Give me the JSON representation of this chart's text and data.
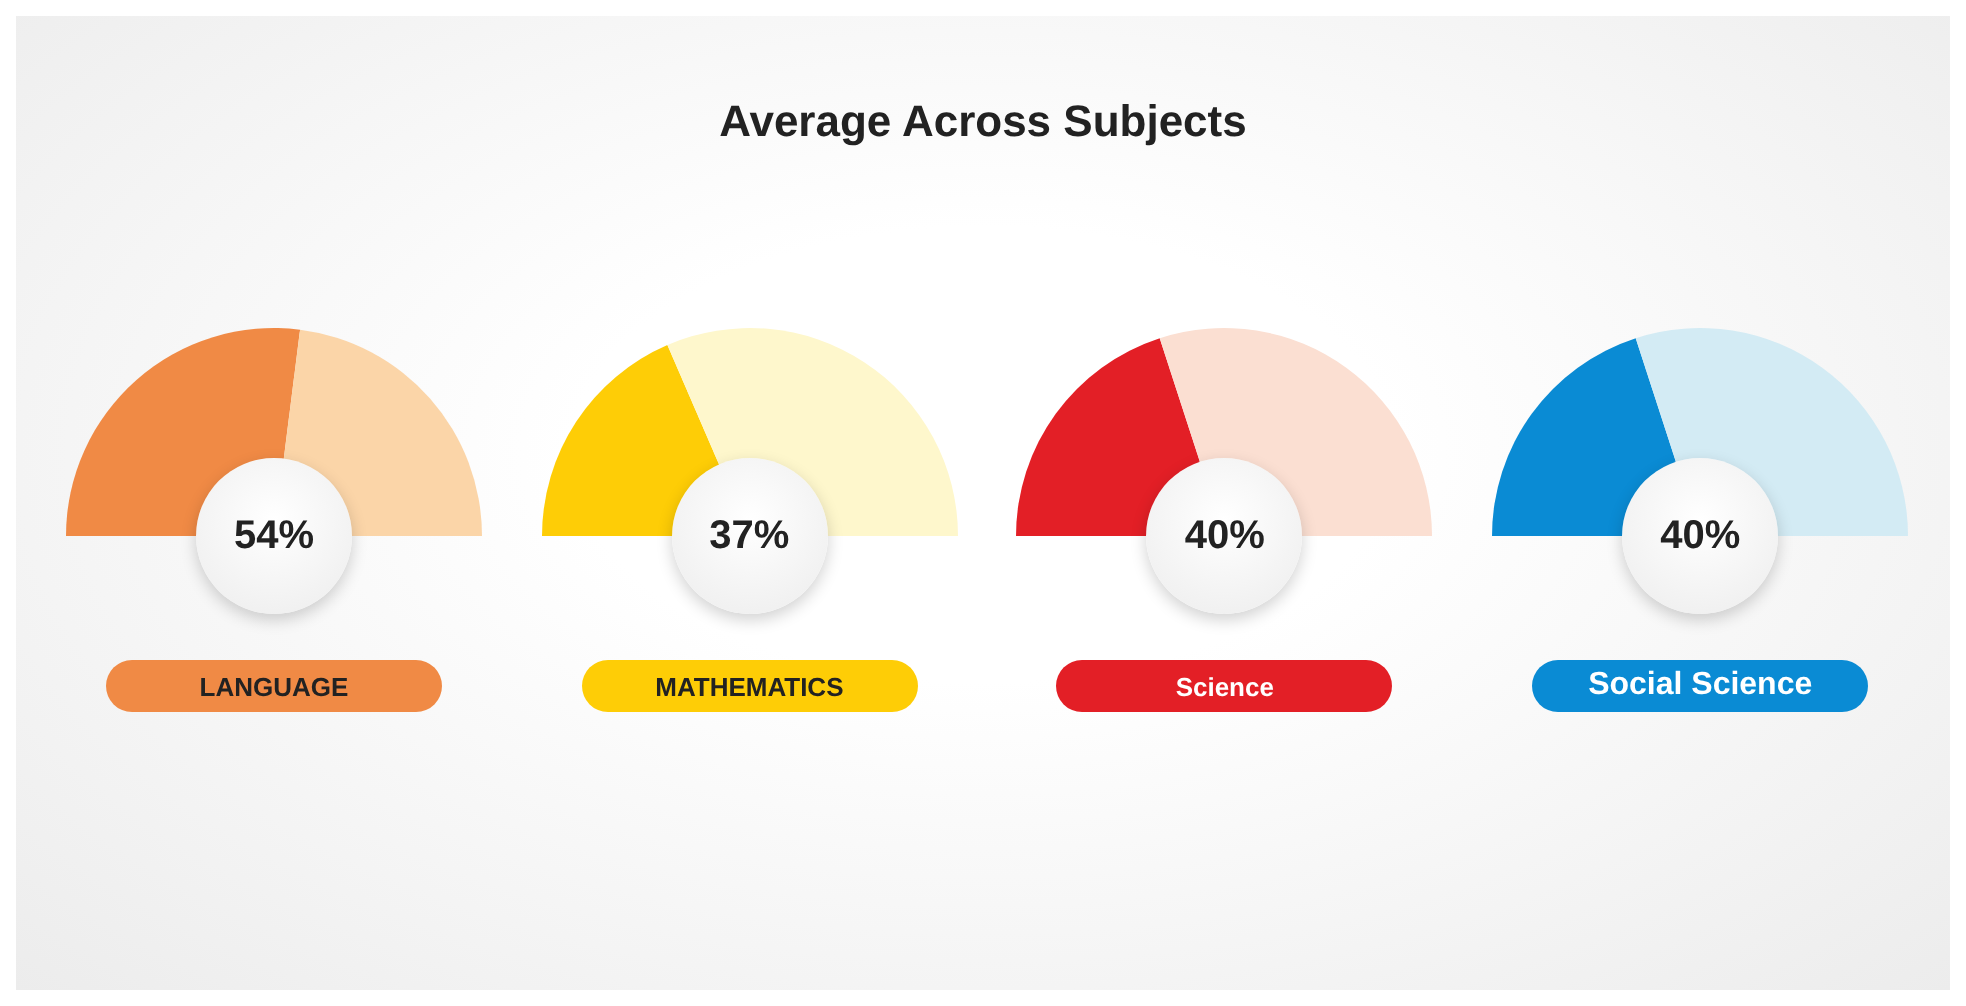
{
  "chart_data": [
    {
      "type": "other",
      "title": "Average Across Subjects"
    },
    {
      "type": "pie",
      "title": "LANGUAGE",
      "categories": [
        null,
        null
      ],
      "values": [
        54,
        46
      ],
      "colors": [
        "#f08a45",
        "#fbd5a8"
      ],
      "annotations": [
        "54%"
      ]
    },
    {
      "type": "pie",
      "title": "MATHEMATICS",
      "categories": [
        null,
        null
      ],
      "values": [
        37,
        63
      ],
      "colors": [
        "#fecd06",
        "#fef7cc"
      ],
      "annotations": [
        "37%"
      ]
    },
    {
      "type": "pie",
      "title": "Science",
      "categories": [
        null,
        null
      ],
      "values": [
        40,
        60
      ],
      "colors": [
        "#e31f26",
        "#fbdfd2"
      ],
      "annotations": [
        "40%"
      ]
    },
    {
      "type": "pie",
      "title": "Social Science",
      "categories": [
        null,
        null
      ],
      "values": [
        40,
        60
      ],
      "colors": [
        "#0a8bd4",
        "#d3ebf4"
      ],
      "annotations": [
        "40%"
      ]
    }
  ]
}
